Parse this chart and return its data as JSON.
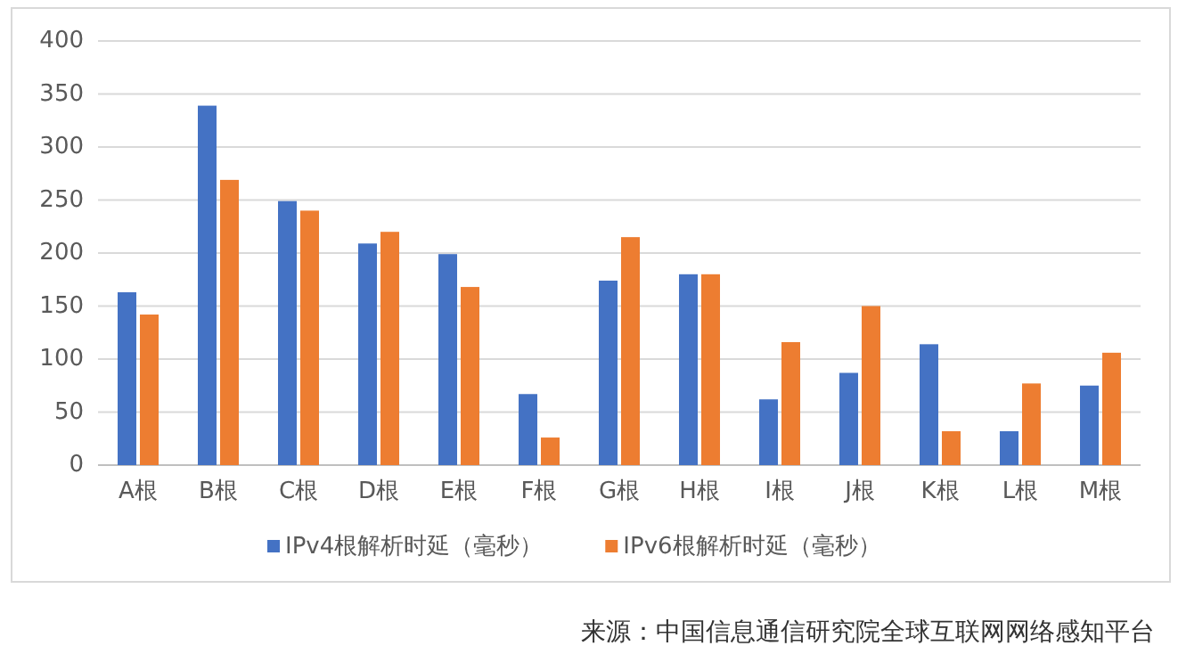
{
  "chart_data": {
    "type": "bar",
    "categories": [
      "A根",
      "B根",
      "C根",
      "D根",
      "E根",
      "F根",
      "G根",
      "H根",
      "I根",
      "J根",
      "K根",
      "L根",
      "M根"
    ],
    "series": [
      {
        "name": "IPv4根解析时延（毫秒）",
        "color": "#4472c4",
        "values": [
          163,
          339,
          249,
          209,
          199,
          67,
          174,
          180,
          62,
          87,
          114,
          32,
          75
        ]
      },
      {
        "name": "IPv6根解析时延（毫秒）",
        "color": "#ed7d31",
        "values": [
          142,
          269,
          240,
          220,
          168,
          26,
          215,
          180,
          116,
          150,
          32,
          77,
          106
        ]
      }
    ],
    "ylim": [
      0,
      400
    ],
    "yticks": [
      0,
      50,
      100,
      150,
      200,
      250,
      300,
      350,
      400
    ],
    "grid": "y",
    "legend": "bottom",
    "annotations": [
      "来源：中国信息通信研究院全球互联网网络感知平台"
    ]
  }
}
